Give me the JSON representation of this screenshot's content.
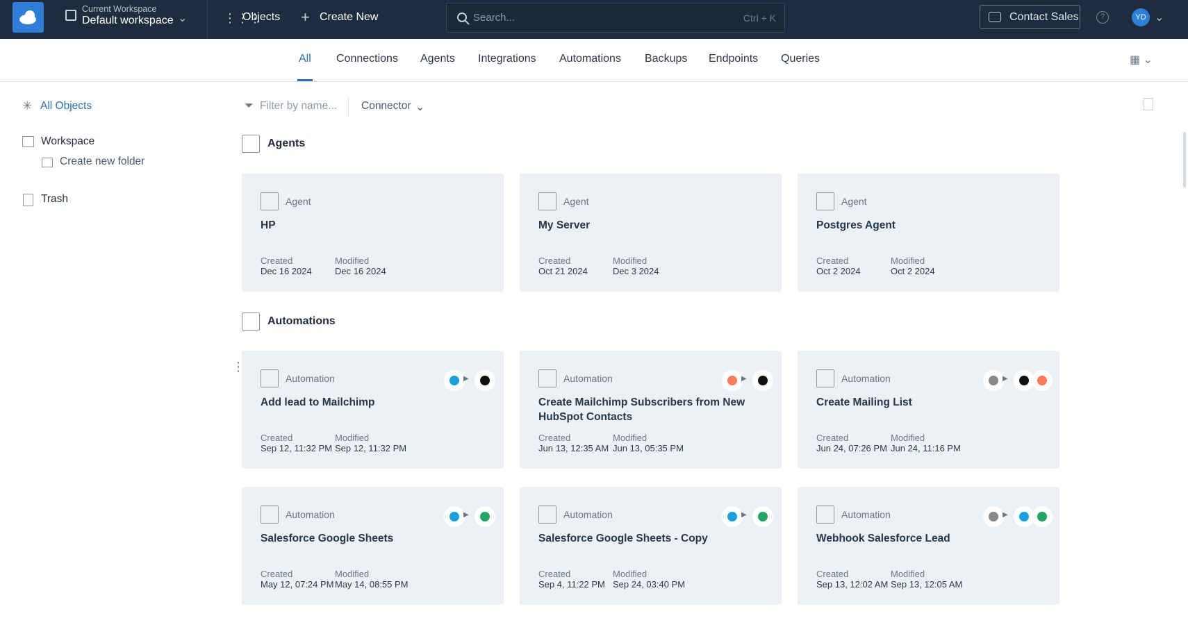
{
  "header": {
    "workspace_label": "Current Workspace",
    "workspace_name": "Default workspace",
    "objects": "Objects",
    "create_new": "Create New",
    "search_placeholder": "Search...",
    "search_shortcut": "Ctrl + K",
    "contact_sales": "Contact Sales",
    "avatar": "YD"
  },
  "tabs": [
    "All",
    "Connections",
    "Agents",
    "Integrations",
    "Automations",
    "Backups",
    "Endpoints",
    "Queries"
  ],
  "sidebar": {
    "all_objects": "All Objects",
    "workspace": "Workspace",
    "create_folder": "Create new folder",
    "trash": "Trash"
  },
  "filter": {
    "placeholder": "Filter by name...",
    "connector": "Connector"
  },
  "sections": [
    {
      "title": "Agents",
      "cards": [
        {
          "type": "Agent",
          "name": "HP",
          "created_label": "Created",
          "created": "Dec 16 2024",
          "modified_label": "Modified",
          "modified": "Dec 16 2024"
        },
        {
          "type": "Agent",
          "name": "My Server",
          "created_label": "Created",
          "created": "Oct 21 2024",
          "modified_label": "Modified",
          "modified": "Dec 3 2024"
        },
        {
          "type": "Agent",
          "name": "Postgres Agent",
          "created_label": "Created",
          "created": "Oct 2 2024",
          "modified_label": "Modified",
          "modified": "Oct 2 2024"
        }
      ]
    },
    {
      "title": "Automations",
      "cards": [
        {
          "type": "Automation",
          "name": "Add lead to Mailchimp",
          "created_label": "Created",
          "created": "Sep 12, 11:32 PM",
          "modified_label": "Modified",
          "modified": "Sep 12, 11:32 PM"
        },
        {
          "type": "Automation",
          "name": "Create Mailchimp Subscribers from New HubSpot Contacts",
          "created_label": "Created",
          "created": "Jun 13, 12:35 AM",
          "modified_label": "Modified",
          "modified": "Jun 13, 05:35 PM"
        },
        {
          "type": "Automation",
          "name": "Create Mailing List",
          "created_label": "Created",
          "created": "Jun 24, 07:26 PM",
          "modified_label": "Modified",
          "modified": "Jun 24, 11:16 PM"
        },
        {
          "type": "Automation",
          "name": "Salesforce Google Sheets",
          "created_label": "Created",
          "created": "May 12, 07:24 PM",
          "modified_label": "Modified",
          "modified": "May 14, 08:55 PM"
        },
        {
          "type": "Automation",
          "name": "Salesforce Google Sheets - Copy",
          "created_label": "Created",
          "created": "Sep 4, 11:22 PM",
          "modified_label": "Modified",
          "modified": "Sep 24, 03:40 PM"
        },
        {
          "type": "Automation",
          "name": "Webhook Salesforce Lead",
          "created_label": "Created",
          "created": "Sep 13, 12:02 AM",
          "modified_label": "Modified",
          "modified": "Sep 13, 12:05 AM"
        }
      ]
    }
  ]
}
